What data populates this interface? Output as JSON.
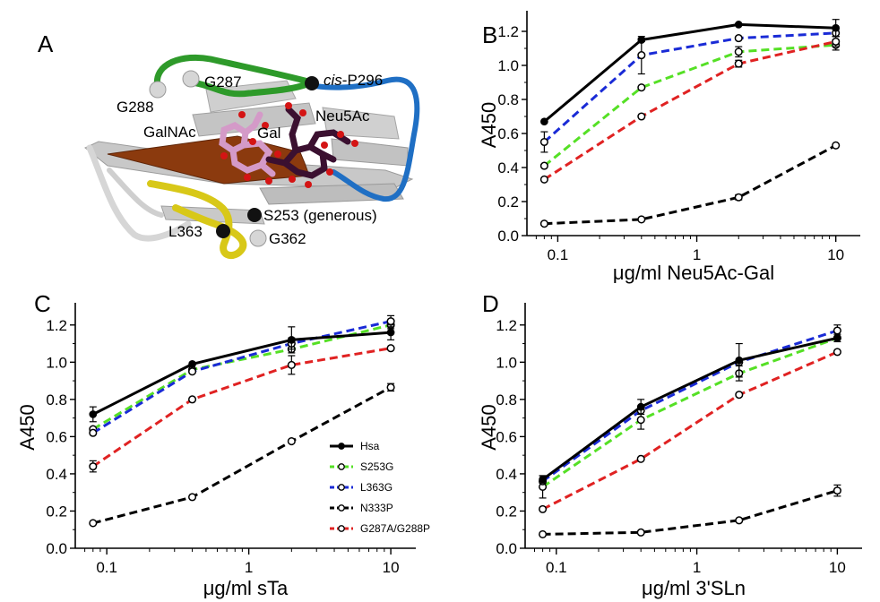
{
  "figure": {
    "panel_letters": [
      "A",
      "B",
      "C",
      "D"
    ],
    "structure_labels": {
      "g288": "G288",
      "g287": "G287",
      "cis_italic": "cis",
      "p296": "-P296",
      "neu5ac": "Neu5Ac",
      "galnac": "GalNAc",
      "gal": "Gal",
      "s253": "S253 (generous)",
      "l363": "L363",
      "g362": "G362"
    },
    "colors": {
      "sheet": "#c9c9c9",
      "strand_brown": "#8b3a0e",
      "loop_green": "#2e9a2a",
      "loop_blue": "#1f6fc4",
      "loop_yellow": "#d8c818",
      "ligand_dark": "#3b1030",
      "ligand_pink": "#d49ac8",
      "oxygen": "#d41414"
    }
  },
  "chart_data": [
    {
      "panel": "B",
      "type": "line",
      "xscale": "log",
      "xlabel": "μg/ml Neu5Ac-Gal",
      "ylabel": "A450",
      "xlim": [
        0.06,
        15
      ],
      "ylim": [
        0,
        1.3
      ],
      "xticks": [
        "0.1",
        "1",
        "10"
      ],
      "yticks": [
        "0.0",
        "0.2",
        "0.4",
        "0.6",
        "0.8",
        "1.0",
        "1.2"
      ],
      "x": [
        0.08,
        0.4,
        2,
        10
      ],
      "series": [
        {
          "name": "Hsa",
          "color": "#000000",
          "style": "solid",
          "marker": "filled",
          "values": [
            0.67,
            1.15,
            1.24,
            1.22
          ],
          "errors": [
            0.0,
            0.01,
            0.0,
            0.05
          ]
        },
        {
          "name": "S253G",
          "color": "#55e025",
          "style": "dashed",
          "marker": "open",
          "values": [
            0.41,
            0.87,
            1.08,
            1.12
          ],
          "errors": [
            0.0,
            0.0,
            0.03,
            0.03
          ]
        },
        {
          "name": "L363G",
          "color": "#1a2bd6",
          "style": "dashed",
          "marker": "open",
          "values": [
            0.55,
            1.06,
            1.16,
            1.19
          ],
          "errors": [
            0.06,
            0.11,
            0.0,
            0.02
          ]
        },
        {
          "name": "N333P",
          "color": "#000000",
          "style": "dashed",
          "marker": "open",
          "values": [
            0.07,
            0.095,
            0.225,
            0.53
          ],
          "errors": [
            0.0,
            0.0,
            0.015,
            0.0
          ]
        },
        {
          "name": "G287A/G288P",
          "color": "#e02222",
          "style": "dashed",
          "marker": "open",
          "values": [
            0.33,
            0.7,
            1.01,
            1.14
          ],
          "errors": [
            0.0,
            0.0,
            0.02,
            0.03
          ]
        }
      ]
    },
    {
      "panel": "C",
      "type": "line",
      "xscale": "log",
      "xlabel": "μg/ml sTa",
      "ylabel": "A450",
      "xlim": [
        0.06,
        15
      ],
      "ylim": [
        0,
        1.3
      ],
      "xticks": [
        "0.1",
        "1",
        "10"
      ],
      "yticks": [
        "0.0",
        "0.2",
        "0.4",
        "0.6",
        "0.8",
        "1.0",
        "1.2"
      ],
      "x": [
        0.08,
        0.4,
        2,
        10
      ],
      "legend": {
        "position": "lower-right",
        "entries": [
          "Hsa",
          "S253G",
          "L363G",
          "N333P",
          "G287A/G288P"
        ]
      },
      "series": [
        {
          "name": "Hsa",
          "color": "#000000",
          "style": "solid",
          "marker": "filled",
          "values": [
            0.72,
            0.99,
            1.12,
            1.16
          ],
          "errors": [
            0.04,
            0.0,
            0.07,
            0.04
          ]
        },
        {
          "name": "S253G",
          "color": "#55e025",
          "style": "dashed",
          "marker": "open",
          "values": [
            0.64,
            0.96,
            1.07,
            1.2
          ],
          "errors": [
            0.0,
            0.0,
            0.0,
            0.02
          ]
        },
        {
          "name": "L363G",
          "color": "#1a2bd6",
          "style": "dashed",
          "marker": "open",
          "values": [
            0.62,
            0.95,
            1.1,
            1.22
          ],
          "errors": [
            0.0,
            0.0,
            0.03,
            0.03
          ]
        },
        {
          "name": "N333P",
          "color": "#000000",
          "style": "dashed",
          "marker": "open",
          "values": [
            0.135,
            0.275,
            0.575,
            0.865
          ],
          "errors": [
            0.0,
            0.0,
            0.0,
            0.02
          ]
        },
        {
          "name": "G287A/G288P",
          "color": "#e02222",
          "style": "dashed",
          "marker": "open",
          "values": [
            0.44,
            0.8,
            0.985,
            1.075
          ],
          "errors": [
            0.03,
            0.0,
            0.05,
            0.0
          ]
        }
      ]
    },
    {
      "panel": "D",
      "type": "line",
      "xscale": "log",
      "xlabel": "μg/ml 3'SLn",
      "ylabel": "A450",
      "xlim": [
        0.06,
        15
      ],
      "ylim": [
        0,
        1.3
      ],
      "xticks": [
        "0.1",
        "1",
        "10"
      ],
      "yticks": [
        "0.0",
        "0.2",
        "0.4",
        "0.6",
        "0.8",
        "1.0",
        "1.2"
      ],
      "x": [
        0.08,
        0.4,
        2,
        10
      ],
      "series": [
        {
          "name": "Hsa",
          "color": "#000000",
          "style": "solid",
          "marker": "filled",
          "values": [
            0.37,
            0.76,
            1.01,
            1.13
          ],
          "errors": [
            0.02,
            0.04,
            0.09,
            0.02
          ]
        },
        {
          "name": "S253G",
          "color": "#55e025",
          "style": "dashed",
          "marker": "open",
          "values": [
            0.33,
            0.69,
            0.94,
            1.13
          ],
          "errors": [
            0.06,
            0.05,
            0.04,
            0.0
          ]
        },
        {
          "name": "L363G",
          "color": "#1a2bd6",
          "style": "dashed",
          "marker": "open",
          "values": [
            0.36,
            0.74,
            1.0,
            1.17
          ],
          "errors": [
            0.0,
            0.0,
            0.0,
            0.03
          ]
        },
        {
          "name": "N333P",
          "color": "#000000",
          "style": "dashed",
          "marker": "open",
          "values": [
            0.075,
            0.085,
            0.15,
            0.31
          ],
          "errors": [
            0.0,
            0.0,
            0.0,
            0.03
          ]
        },
        {
          "name": "G287A/G288P",
          "color": "#e02222",
          "style": "dashed",
          "marker": "open",
          "values": [
            0.21,
            0.48,
            0.825,
            1.055
          ],
          "errors": [
            0.0,
            0.0,
            0.0,
            0.0
          ]
        }
      ]
    }
  ]
}
